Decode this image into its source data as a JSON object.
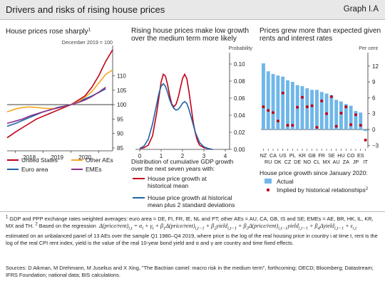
{
  "header": {
    "title": "Drivers and risks of rising house prices",
    "graph_id": "Graph I.A"
  },
  "chart_data": [
    {
      "type": "line",
      "title": "House prices rose sharply",
      "title_note": "1",
      "unit_label": "December 2019 = 100",
      "x_ticks": [
        "2018",
        "2019",
        "2020"
      ],
      "y_ticks": [
        85,
        90,
        95,
        100,
        105,
        110
      ],
      "ylim": [
        84,
        119
      ],
      "xlim": [
        2017.7,
        2021.5
      ],
      "reference_line": 100,
      "series": [
        {
          "name": "United States",
          "color": "#c00018",
          "x": [
            2017.7,
            2018,
            2018.25,
            2018.5,
            2018.75,
            2019,
            2019.25,
            2019.5,
            2019.75,
            2020,
            2020.25,
            2020.5,
            2020.75,
            2021,
            2021.25,
            2021.5
          ],
          "values": [
            88.5,
            90.5,
            92,
            93.5,
            95,
            96,
            97,
            98,
            99,
            100,
            101.5,
            103,
            106,
            110,
            115,
            119
          ]
        },
        {
          "name": "Euro area",
          "color": "#1f64a8",
          "x": [
            2017.7,
            2018,
            2018.25,
            2018.5,
            2018.75,
            2019,
            2019.25,
            2019.5,
            2019.75,
            2020,
            2020.25,
            2020.5,
            2020.75,
            2021,
            2021.25
          ],
          "values": [
            92.5,
            93.5,
            94.5,
            95.5,
            96.5,
            97.5,
            98.2,
            99,
            99.5,
            100,
            101,
            102,
            103,
            104.2,
            105.5
          ]
        },
        {
          "name": "Other AEs",
          "color": "#f5a623",
          "x": [
            2017.7,
            2018,
            2018.25,
            2018.5,
            2018.75,
            2019,
            2019.25,
            2019.5,
            2019.75,
            2020,
            2020.25,
            2020.5,
            2020.75,
            2021,
            2021.25,
            2021.5
          ],
          "values": [
            97.5,
            98.5,
            99,
            99.2,
            99,
            98.8,
            98.6,
            98.8,
            99.3,
            100,
            101,
            102.5,
            104.5,
            107.5,
            110.5,
            112
          ]
        },
        {
          "name": "EMEs",
          "color": "#8b2f8b",
          "x": [
            2017.7,
            2018,
            2018.25,
            2018.5,
            2018.75,
            2019,
            2019.25,
            2019.5,
            2019.75,
            2020,
            2020.25,
            2020.5,
            2020.75,
            2021,
            2021.25
          ],
          "values": [
            93.5,
            94.3,
            95,
            96,
            96.8,
            97.5,
            98.2,
            98.8,
            99.4,
            100,
            100.7,
            101.6,
            102.8,
            104.3,
            106
          ]
        }
      ]
    },
    {
      "type": "line",
      "title": "Rising house prices make low growth over the medium term more likely",
      "unit_label": "Probability",
      "x_ticks": [
        0,
        1,
        2,
        3,
        4
      ],
      "xlim": [
        -0.2,
        4.2
      ],
      "y_ticks": [
        "0.00",
        "0.02",
        "0.04",
        "0.06",
        "0.08",
        "0.10"
      ],
      "ylim": [
        0,
        0.11
      ],
      "xlabel": "Distribution of cumulative GDP growth over the next seven years with:",
      "series": [
        {
          "name": "House price growth at historical mean",
          "color": "#c00018",
          "x": [
            0,
            0.2,
            0.4,
            0.6,
            0.8,
            1.0,
            1.1,
            1.2,
            1.3,
            1.4,
            1.5,
            1.6,
            1.7,
            1.8,
            1.9,
            2.0,
            2.1,
            2.2,
            2.3,
            2.4,
            2.5,
            2.6,
            2.7,
            2.8,
            3.0,
            3.2,
            3.4
          ],
          "values": [
            0.001,
            0.002,
            0.005,
            0.016,
            0.044,
            0.079,
            0.088,
            0.086,
            0.076,
            0.063,
            0.053,
            0.05,
            0.053,
            0.061,
            0.072,
            0.083,
            0.088,
            0.083,
            0.068,
            0.05,
            0.032,
            0.019,
            0.01,
            0.005,
            0.002,
            0.001,
            0.0
          ]
        },
        {
          "name": "House price growth at historical mean plus 2 standard deviations",
          "color": "#1f64a8",
          "x": [
            0,
            0.2,
            0.4,
            0.6,
            0.8,
            0.9,
            1.0,
            1.1,
            1.2,
            1.3,
            1.4,
            1.5,
            1.6,
            1.7,
            1.8,
            1.9,
            2.0,
            2.1,
            2.2,
            2.3,
            2.4,
            2.6,
            2.8,
            3.0,
            3.2,
            3.4
          ],
          "values": [
            0.001,
            0.004,
            0.012,
            0.03,
            0.054,
            0.066,
            0.074,
            0.077,
            0.074,
            0.067,
            0.058,
            0.052,
            0.048,
            0.046,
            0.047,
            0.05,
            0.054,
            0.056,
            0.054,
            0.047,
            0.038,
            0.02,
            0.008,
            0.003,
            0.001,
            0.0
          ]
        }
      ]
    },
    {
      "type": "bar",
      "title": "Prices grew more than expected given rents and interest rates",
      "unit_label": "Per cent",
      "categories": [
        "NZ",
        "RU",
        "CA",
        "DK",
        "US",
        "CZ",
        "PL",
        "DE",
        "KR",
        "NO",
        "GB",
        "CL",
        "FR",
        "MX",
        "SE",
        "AU",
        "HU",
        "ZA",
        "CO",
        "JP",
        "ES",
        "IT"
      ],
      "top_labels": [
        "NZ",
        "CA",
        "US",
        "PL",
        "KR",
        "GB",
        "FR",
        "SE",
        "HU",
        "CO",
        "ES"
      ],
      "bottom_labels": [
        "RU",
        "DK",
        "CZ",
        "DE",
        "NO",
        "CL",
        "MX",
        "AU",
        "ZA",
        "JP",
        "IT"
      ],
      "y_ticks": [
        -3,
        0,
        3,
        6,
        9,
        12
      ],
      "ylim": [
        -3.5,
        14
      ],
      "series": [
        {
          "name": "Actual",
          "color": "#6fb7e9",
          "values": [
            12.5,
            11.0,
            10.5,
            10.2,
            10.0,
            9.3,
            9.0,
            8.4,
            8.2,
            7.8,
            7.5,
            7.5,
            7.1,
            6.8,
            6.5,
            5.6,
            5.3,
            4.8,
            4.5,
            3.5,
            3.2,
            -0.3
          ]
        },
        {
          "name": "Implied by historical relationships",
          "note": "2",
          "color": "#c00018",
          "values": [
            4.3,
            3.6,
            3.2,
            1.6,
            6.9,
            0.8,
            0.8,
            4.2,
            6.1,
            4.3,
            4.5,
            0.4,
            5.4,
            3.0,
            6.2,
            0.6,
            3.1,
            4.3,
            0.9,
            2.8,
            0.8,
            -2.0
          ]
        }
      ],
      "legend_title": "House price growth since January 2020:"
    }
  ],
  "footnotes": {
    "note1_mark": "1",
    "note1": "GDP and PPP exchange rates weighted averages: euro area = DE, FI, FR, IE, NL and PT; other AEs = AU, CA, GB, IS and SE; EMEs = AE, BR, HK, IL, KR, MX and TH.",
    "note2_mark": "2",
    "note2_intro": "Based on the regression",
    "note2_rest": "estimated on an unbalanced panel of 13 AEs over the sample Q1 1980–Q4 2019, where price is the log of the real housing price in country i at time t, rent is the log of the real CPI rent index, yield is the value of the real 10-year bond yield and α and γ are country and time fixed effects."
  },
  "sources": "Sources: D Aikman, M Drehmann, M Juselius and X Xing, \"The Bactrian camel: macro risk in the medium term\", forthcoming; OECD; Bloomberg; Datastream; IFRS Foundation; national data; BIS calculations."
}
